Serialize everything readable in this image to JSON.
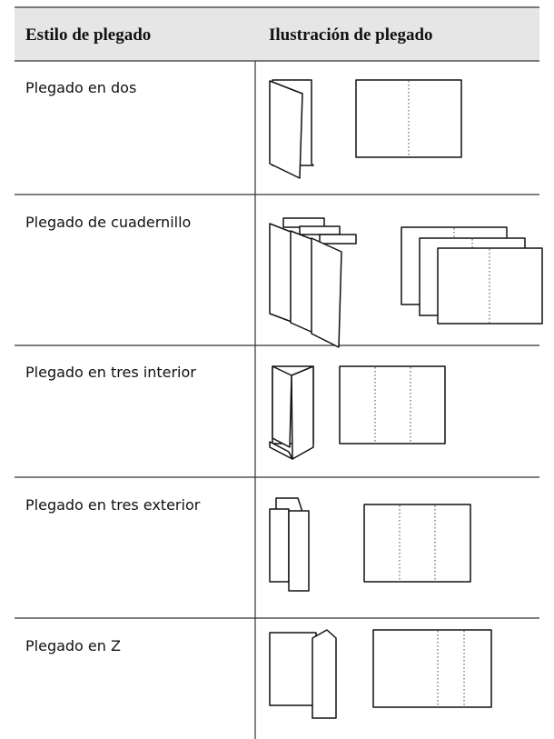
{
  "table": {
    "header": [
      "Estilo de plegado",
      "Ilustración de plegado"
    ],
    "rows": [
      "Plegado en dos",
      "Plegado de cuadernillo",
      "Plegado en tres interior",
      "Plegado en tres exterior",
      "Plegado en Z"
    ]
  }
}
